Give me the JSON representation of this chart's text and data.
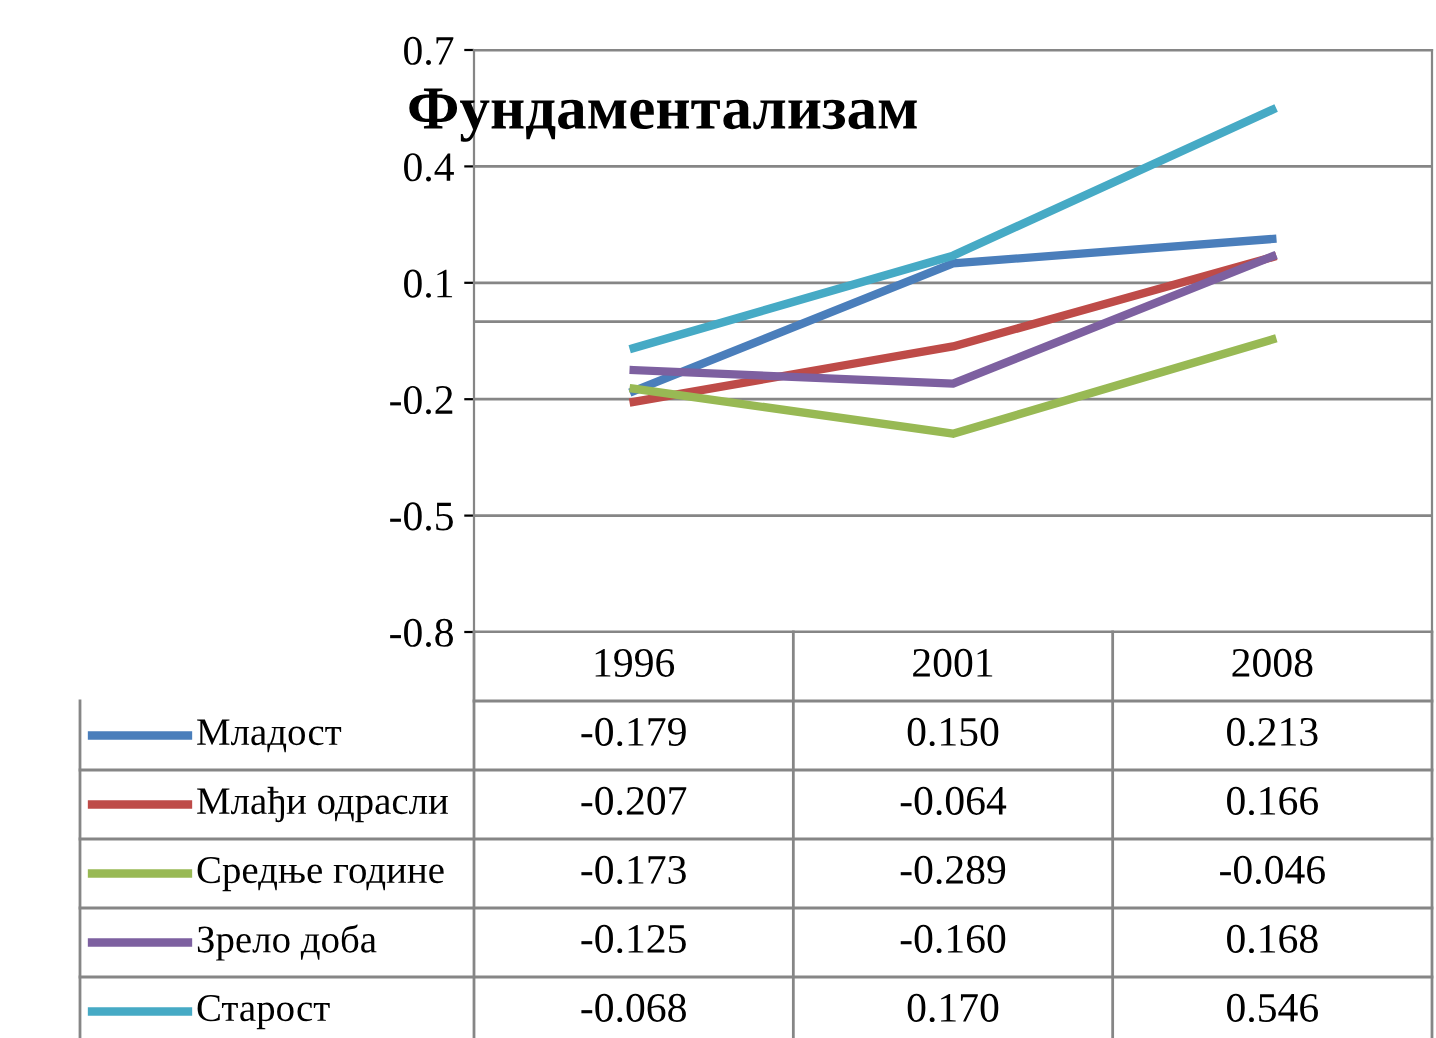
{
  "chart_data": {
    "type": "line",
    "title": "Фундаментализам",
    "categories": [
      "1996",
      "2001",
      "2008"
    ],
    "series": [
      {
        "name": "Младост",
        "color": "#4a7ebb",
        "values": [
          -0.179,
          0.15,
          0.213
        ],
        "value_labels": [
          "-0.179",
          "0.150",
          "0.213"
        ]
      },
      {
        "name": "Млађи одрасли",
        "color": "#be4b48",
        "values": [
          -0.207,
          -0.064,
          0.166
        ],
        "value_labels": [
          "-0.207",
          "-0.064",
          "0.166"
        ]
      },
      {
        "name": "Средње године",
        "color": "#98b954",
        "values": [
          -0.173,
          -0.289,
          -0.046
        ],
        "value_labels": [
          "-0.173",
          "-0.289",
          "-0.046"
        ]
      },
      {
        "name": "Зрело доба",
        "color": "#7d60a0",
        "values": [
          -0.125,
          -0.16,
          0.168
        ],
        "value_labels": [
          "-0.125",
          "-0.160",
          "0.168"
        ]
      },
      {
        "name": "Старост",
        "color": "#46aac5",
        "values": [
          -0.068,
          0.17,
          0.546
        ],
        "value_labels": [
          "-0.068",
          "0.170",
          "0.546"
        ]
      }
    ],
    "ylim": [
      -0.8,
      0.7
    ],
    "yticks": [
      {
        "value": -0.8,
        "label": "-0.8"
      },
      {
        "value": -0.5,
        "label": "-0.5"
      },
      {
        "value": -0.2,
        "label": "-0.2"
      },
      {
        "value": 0.1,
        "label": "0.1"
      },
      {
        "value": 0.4,
        "label": "0.4"
      },
      {
        "value": 0.7,
        "label": "0.7"
      }
    ],
    "ref_lines": [
      {
        "axis": "y",
        "value": 0,
        "color": "#868686"
      }
    ],
    "grid": "y",
    "legend": "bottom",
    "marker": "none",
    "line_style": "solid"
  }
}
